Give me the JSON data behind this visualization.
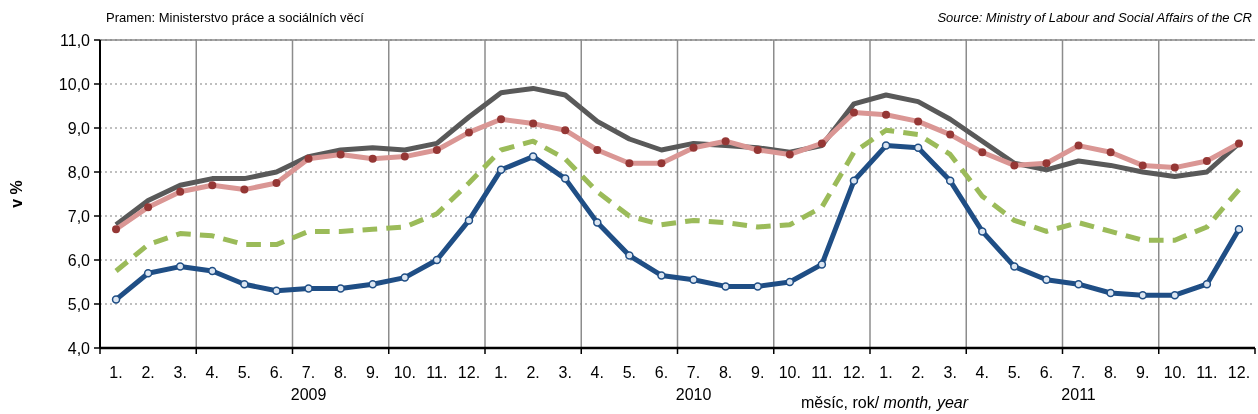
{
  "chart_data": {
    "type": "line",
    "categories": [
      "1.",
      "2.",
      "3.",
      "4.",
      "5.",
      "6.",
      "7.",
      "8.",
      "9.",
      "10.",
      "11.",
      "12.",
      "1.",
      "2.",
      "3.",
      "4.",
      "5.",
      "6.",
      "7.",
      "8.",
      "9.",
      "10.",
      "11.",
      "12.",
      "1.",
      "2.",
      "3.",
      "4.",
      "5.",
      "6.",
      "7.",
      "8.",
      "9.",
      "10.",
      "11.",
      "12."
    ],
    "series": [
      {
        "color": "#1f4e85",
        "marker": "circle",
        "line_style": "solid",
        "values": [
          5.1,
          5.7,
          5.85,
          5.75,
          5.45,
          5.3,
          5.35,
          5.35,
          5.45,
          5.6,
          6.0,
          6.9,
          8.05,
          8.35,
          7.85,
          6.85,
          6.1,
          5.65,
          5.55,
          5.4,
          5.4,
          5.5,
          5.9,
          7.8,
          8.6,
          8.55,
          7.8,
          6.65,
          5.85,
          5.55,
          5.45,
          5.25,
          5.2,
          5.2,
          5.45,
          6.7
        ]
      },
      {
        "color": "#da9694",
        "marker": "circle",
        "line_style": "solid",
        "values": [
          6.7,
          7.2,
          7.55,
          7.7,
          7.6,
          7.75,
          8.3,
          8.4,
          8.3,
          8.35,
          8.5,
          8.9,
          9.2,
          9.1,
          8.95,
          8.5,
          8.2,
          8.2,
          8.55,
          8.7,
          8.5,
          8.4,
          8.65,
          9.35,
          9.3,
          9.15,
          8.85,
          8.45,
          8.15,
          8.2,
          8.6,
          8.45,
          8.15,
          8.1,
          8.25,
          8.65
        ]
      },
      {
        "color": "#595959",
        "marker": "none",
        "line_style": "solid",
        "values": [
          6.8,
          7.35,
          7.7,
          7.85,
          7.85,
          8.0,
          8.35,
          8.5,
          8.55,
          8.5,
          8.65,
          9.25,
          9.8,
          9.9,
          9.75,
          9.15,
          8.75,
          8.5,
          8.65,
          8.6,
          8.55,
          8.45,
          8.6,
          9.55,
          9.75,
          9.6,
          9.2,
          8.7,
          8.2,
          8.05,
          8.25,
          8.15,
          8.0,
          7.9,
          8.0,
          8.65
        ]
      },
      {
        "color": "#9bbb59",
        "marker": "none",
        "line_style": "dashed",
        "values": [
          5.75,
          6.35,
          6.6,
          6.55,
          6.35,
          6.35,
          6.65,
          6.65,
          6.7,
          6.75,
          7.05,
          7.75,
          8.5,
          8.7,
          8.3,
          7.55,
          7.0,
          6.8,
          6.9,
          6.85,
          6.75,
          6.8,
          7.2,
          8.45,
          8.95,
          8.85,
          8.4,
          7.45,
          6.9,
          6.65,
          6.85,
          6.65,
          6.45,
          6.45,
          6.75,
          7.6
        ]
      }
    ],
    "ylim": [
      4,
      11
    ],
    "yticks": [
      {
        "value": 4,
        "label": "4,0"
      },
      {
        "value": 5,
        "label": "5,0"
      },
      {
        "value": 6,
        "label": "6,0"
      },
      {
        "value": 7,
        "label": "7,0"
      },
      {
        "value": 8,
        "label": "8,0"
      },
      {
        "value": 9,
        "label": "9,0"
      },
      {
        "value": 10,
        "label": "10,0"
      },
      {
        "value": 11,
        "label": "11,0"
      }
    ],
    "ylabel": "v %",
    "xlabel": "měsíc, rok/ month, year",
    "grid": true,
    "annotations": [
      "2009",
      "2010",
      "2011",
      "Pramen: Ministerstvo práce a sociálních věcí",
      "Source: Ministry of Labour and Social Affairs of the CR"
    ]
  }
}
